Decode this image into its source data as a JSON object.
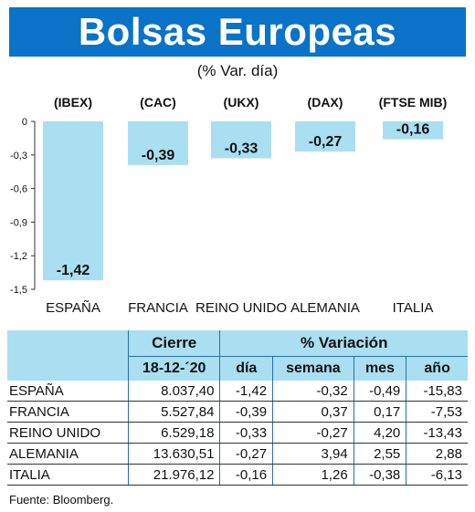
{
  "title": "Bolsas Europeas",
  "subtitle": "(% Var. día)",
  "chart_data": {
    "type": "bar",
    "categories": [
      "ESPAÑA",
      "FRANCIA",
      "REINO UNIDO",
      "ALEMANIA",
      "ITALIA"
    ],
    "index_labels": [
      "(IBEX)",
      "(CAC)",
      "(UKX)",
      "(DAX)",
      "(FTSE MIB)"
    ],
    "values": [
      -1.42,
      -0.39,
      -0.33,
      -0.27,
      -0.16
    ],
    "value_labels": [
      "-1,42",
      "-0,39",
      "-0,33",
      "-0,27",
      "-0,16"
    ],
    "yticks": [
      "0",
      "-0,3",
      "-0,6",
      "-0,9",
      "-1,2",
      "-1,5"
    ],
    "ylim": [
      -1.5,
      0
    ],
    "bar_color": "#a9dff0"
  },
  "table": {
    "header_cierre": "Cierre",
    "header_variacion": "% Variación",
    "header_date": "18-12-´20",
    "header_dia": "día",
    "header_semana": "semana",
    "header_mes": "mes",
    "header_anio": "año",
    "rows": [
      {
        "name": "ESPAÑA",
        "cierre": "8.037,40",
        "dia": "-1,42",
        "semana": "-0,32",
        "mes": "-0,49",
        "anio": "-15,83"
      },
      {
        "name": "FRANCIA",
        "cierre": "5.527,84",
        "dia": "-0,39",
        "semana": "0,37",
        "mes": "0,17",
        "anio": "-7,53"
      },
      {
        "name": "REINO UNIDO",
        "cierre": "6.529,18",
        "dia": "-0,33",
        "semana": "-0,27",
        "mes": "4,20",
        "anio": "-13,43"
      },
      {
        "name": "ALEMANIA",
        "cierre": "13.630,51",
        "dia": "-0,27",
        "semana": "3,94",
        "mes": "2,55",
        "anio": "2,88"
      },
      {
        "name": "ITALIA",
        "cierre": "21.976,12",
        "dia": "-0,16",
        "semana": "1,26",
        "mes": "-0,38",
        "anio": "-6,13"
      }
    ]
  },
  "source": "Fuente: Bloomberg."
}
